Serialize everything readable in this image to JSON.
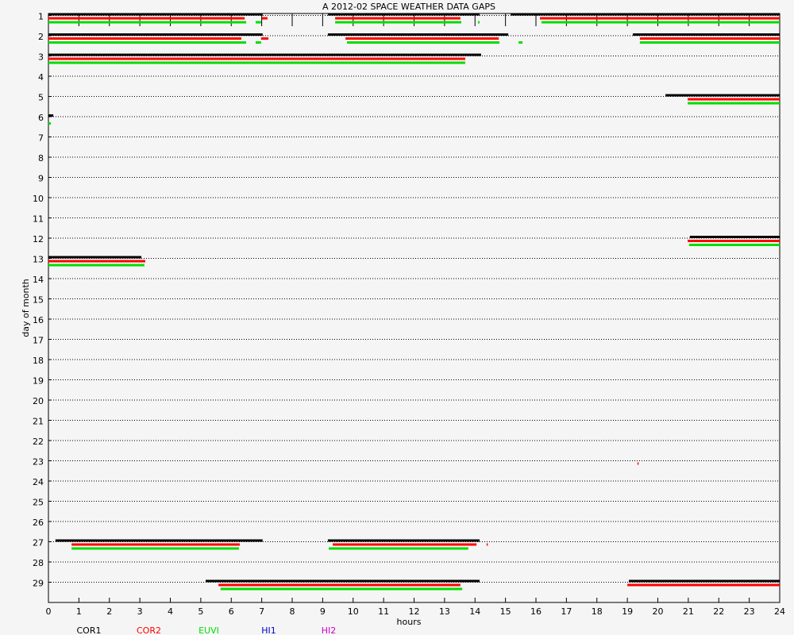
{
  "chart_data": {
    "type": "gaps",
    "title": "A  2012-02 SPACE WEATHER DATA GAPS",
    "xlabel": "hours",
    "ylabel": "day of month",
    "xlim": [
      0,
      24
    ],
    "xticks": [
      0,
      1,
      2,
      3,
      4,
      5,
      6,
      7,
      8,
      9,
      10,
      11,
      12,
      13,
      14,
      15,
      16,
      17,
      18,
      19,
      20,
      21,
      22,
      23,
      24
    ],
    "ylim": [
      30,
      0.9
    ],
    "yticks": [
      1,
      2,
      3,
      4,
      5,
      6,
      7,
      8,
      9,
      10,
      11,
      12,
      13,
      14,
      15,
      16,
      17,
      18,
      19,
      20,
      21,
      22,
      23,
      24,
      25,
      26,
      27,
      28,
      29
    ],
    "grid": true,
    "series": [
      {
        "name": "COR1",
        "color": "#000000",
        "segments": [
          [
            1,
            0,
            7.03
          ],
          [
            1,
            9.17,
            14.15
          ],
          [
            1,
            15.17,
            24
          ],
          [
            2,
            0,
            7.03
          ],
          [
            2,
            9.17,
            15.09
          ],
          [
            2,
            19.18,
            24
          ],
          [
            3,
            0,
            14.2
          ],
          [
            5,
            20.25,
            24
          ],
          [
            6,
            0,
            0.16
          ],
          [
            12,
            21.05,
            24
          ],
          [
            13,
            0,
            3.05
          ],
          [
            27,
            0.23,
            7.03
          ],
          [
            27,
            9.17,
            14.15
          ],
          [
            29,
            5.16,
            14.15
          ],
          [
            29,
            19.05,
            24
          ]
        ]
      },
      {
        "name": "COR2",
        "color": "#ff0000",
        "segments": [
          [
            1,
            0,
            6.44
          ],
          [
            1,
            7.01,
            7.19
          ],
          [
            1,
            9.41,
            13.52
          ],
          [
            1,
            16.13,
            24
          ],
          [
            2,
            0,
            6.33
          ],
          [
            2,
            6.98,
            7.22
          ],
          [
            2,
            9.75,
            14.78
          ],
          [
            2,
            19.41,
            24
          ],
          [
            3,
            0,
            13.68
          ],
          [
            5,
            20.98,
            24
          ],
          [
            12,
            20.98,
            24
          ],
          [
            13,
            0,
            3.18
          ],
          [
            23,
            19.33,
            19.37
          ],
          [
            27,
            0.76,
            6.28
          ],
          [
            27,
            9.33,
            14.05
          ],
          [
            27,
            14.38,
            14.42
          ],
          [
            29,
            5.58,
            13.52
          ],
          [
            29,
            19.0,
            24
          ]
        ]
      },
      {
        "name": "EUVI",
        "color": "#00dd00",
        "segments": [
          [
            1,
            0,
            6.49
          ],
          [
            1,
            6.8,
            6.98
          ],
          [
            1,
            9.41,
            13.55
          ],
          [
            1,
            14.1,
            14.15
          ],
          [
            1,
            16.18,
            24
          ],
          [
            2,
            0,
            6.49
          ],
          [
            2,
            6.8,
            6.98
          ],
          [
            2,
            9.8,
            14.8
          ],
          [
            2,
            15.43,
            15.56
          ],
          [
            2,
            19.41,
            24
          ],
          [
            3,
            0,
            13.68
          ],
          [
            5,
            20.98,
            24
          ],
          [
            6,
            0,
            0.08
          ],
          [
            12,
            21.03,
            24
          ],
          [
            13,
            0,
            3.15
          ],
          [
            27,
            0.76,
            6.25
          ],
          [
            27,
            9.2,
            13.78
          ],
          [
            29,
            5.65,
            13.58
          ]
        ]
      },
      {
        "name": "HI1",
        "color": "#0000cc",
        "segments": []
      },
      {
        "name": "HI2",
        "color": "#cc00cc",
        "segments": []
      }
    ]
  }
}
